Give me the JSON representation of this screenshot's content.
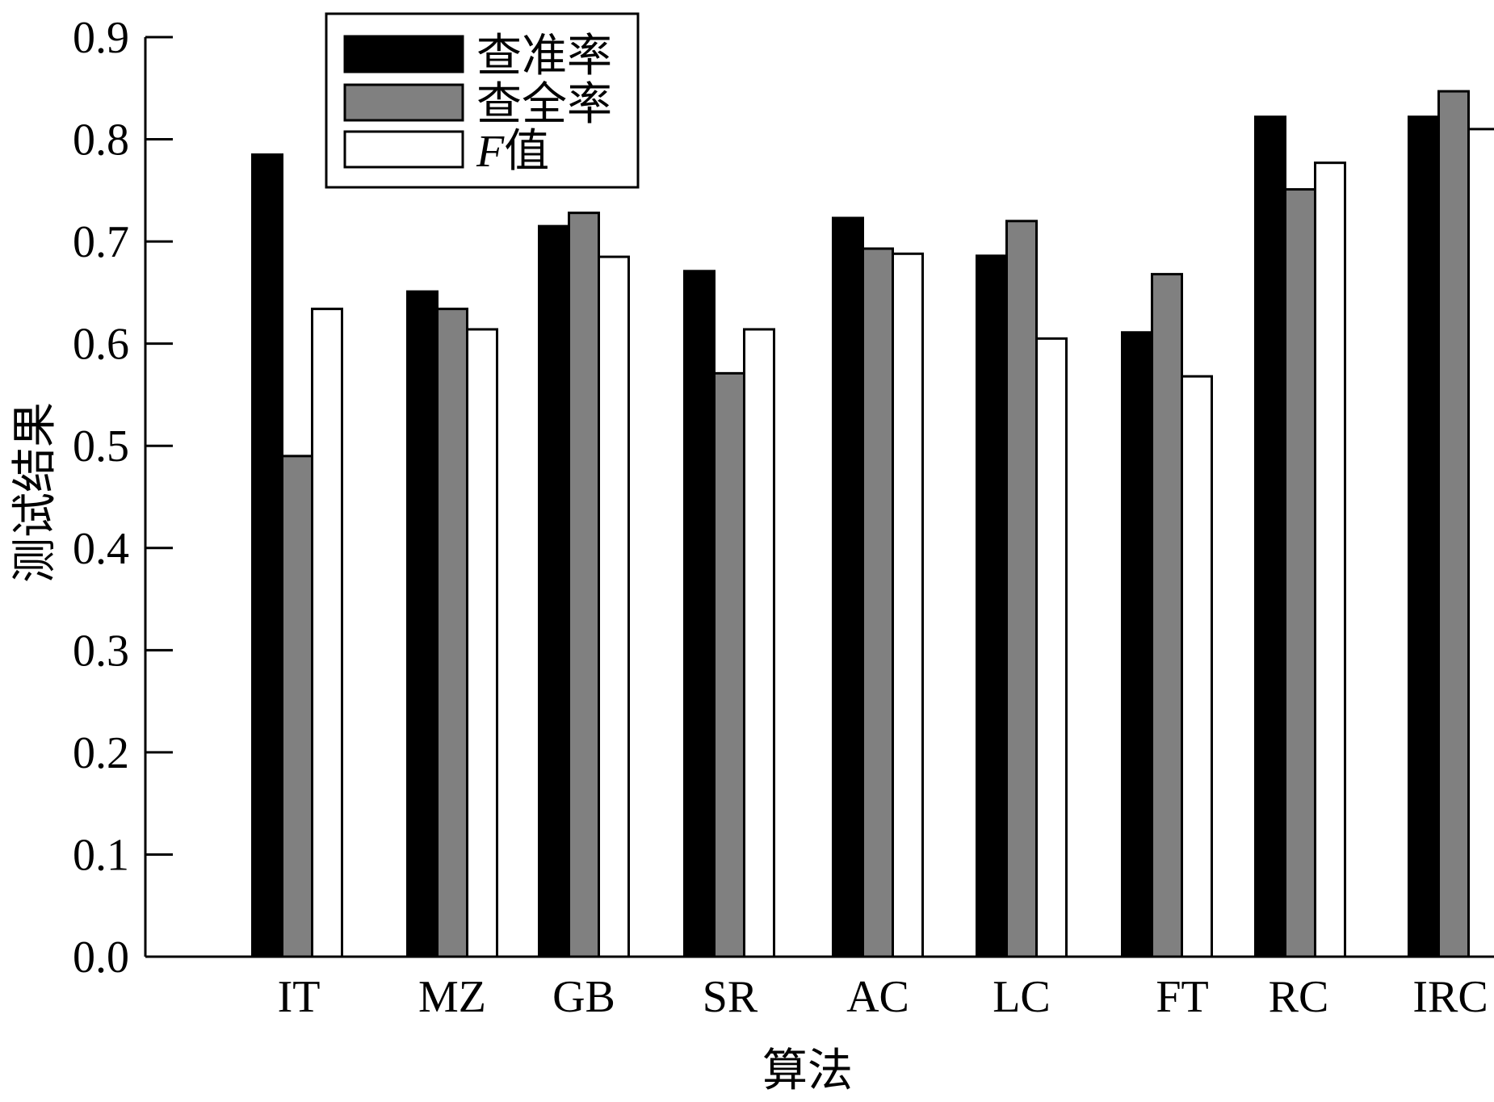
{
  "chart_data": {
    "type": "bar",
    "title": "",
    "xlabel": "算法",
    "ylabel": "测试结果",
    "ylim": [
      0,
      0.9
    ],
    "yticks": [
      "0.0",
      "0.1",
      "0.2",
      "0.3",
      "0.4",
      "0.5",
      "0.6",
      "0.7",
      "0.8",
      "0.9"
    ],
    "categories": [
      "IT",
      "MZ",
      "GB",
      "SR",
      "AC",
      "LC",
      "FT",
      "RC",
      "IRC"
    ],
    "series": [
      {
        "name": "查准率",
        "color": "#000000",
        "values": [
          0.785,
          0.651,
          0.715,
          0.671,
          0.723,
          0.686,
          0.611,
          0.822,
          0.822
        ]
      },
      {
        "name": "查全率",
        "color": "#808080",
        "values": [
          0.49,
          0.634,
          0.728,
          0.571,
          0.693,
          0.72,
          0.668,
          0.751,
          0.847
        ]
      },
      {
        "name": "F值",
        "color": "#ffffff",
        "values": [
          0.634,
          0.614,
          0.685,
          0.614,
          0.688,
          0.605,
          0.568,
          0.777,
          0.81
        ]
      }
    ],
    "legend": {
      "position": "top-left",
      "italic_prefix": "F"
    },
    "grid": false
  }
}
